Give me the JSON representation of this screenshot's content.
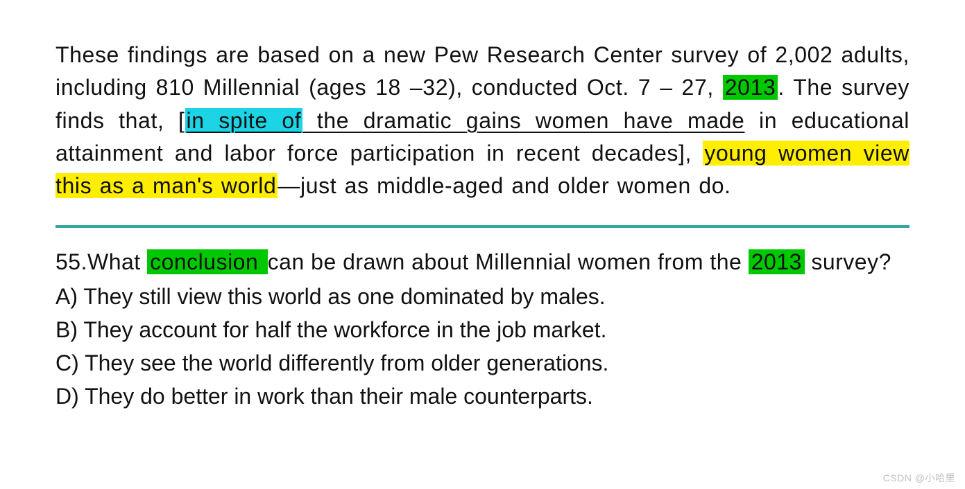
{
  "passage": {
    "seg1": "These findings are based on a new Pew Research Center survey of 2,002 adults, including 810 Millennial (ages 18 –32), conducted Oct. 7 – 27, ",
    "year_hl": "2013",
    "seg2": ". The survey finds that, [",
    "cyan_span": "in spite of",
    "ul_cyan_tail": " the dramatic gains women have made",
    "seg3": " in educational attainment and labor force participation in recent decades], ",
    "yellow_span": "young women view this as a man's world",
    "seg4": "—just as middle-aged and older women do."
  },
  "divider_color": "#32a8a0",
  "question": {
    "number": "55.",
    "pre": "What ",
    "hl1": "conclusion ",
    "mid": "can be drawn about Millennial women from the ",
    "hl2": "2013",
    "post": " survey?",
    "choices": [
      {
        "letter": "A)",
        "text": " They still view this world as one dominated by males."
      },
      {
        "letter": "B)",
        "text": " They account for half the workforce in the job market."
      },
      {
        "letter": "C)",
        "text": " They see the world differently from older generations."
      },
      {
        "letter": "D)",
        "text": " They do better in work than their male counterparts."
      }
    ]
  },
  "highlight_colors": {
    "green": "#00c800",
    "cyan": "#1cd4e6",
    "yellow": "#ffee00"
  },
  "watermark": "CSDN @小哈里"
}
